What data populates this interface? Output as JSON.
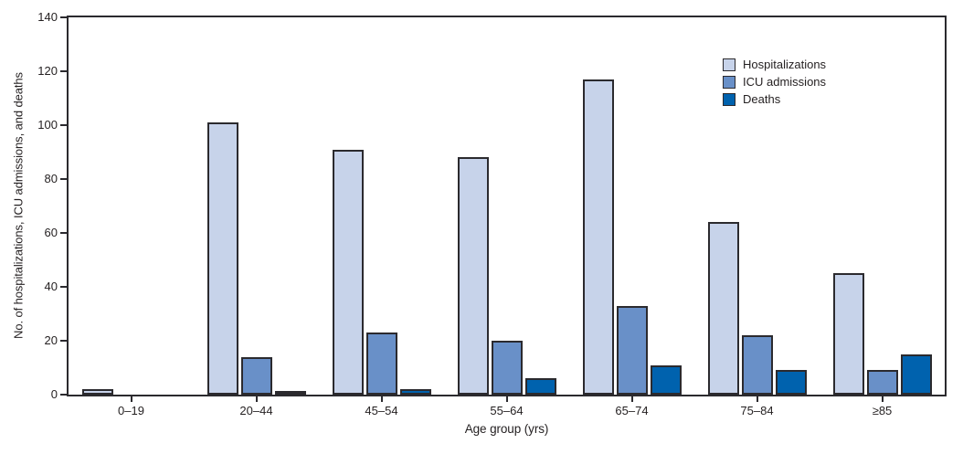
{
  "chart_data": {
    "type": "bar",
    "title": "",
    "categories": [
      "0–19",
      "20–44",
      "45–54",
      "55–64",
      "65–74",
      "75–84",
      "≥85"
    ],
    "series": [
      {
        "name": "Hospitalizations",
        "color": "#c7d3ea",
        "values": [
          2,
          101,
          91,
          88,
          117,
          64,
          45
        ]
      },
      {
        "name": "ICU admissions",
        "color": "#6990c8",
        "values": [
          0,
          14,
          23,
          20,
          33,
          22,
          9
        ]
      },
      {
        "name": "Deaths",
        "color": "#0062ae",
        "values": [
          0,
          1,
          2,
          6,
          11,
          9,
          15
        ]
      }
    ],
    "xlabel": "Age group (yrs)",
    "ylabel": "No. of hospitalizations, ICU admissions, and deaths",
    "ylim": [
      0,
      140
    ],
    "yticks": [
      0,
      20,
      40,
      60,
      80,
      100,
      120,
      140
    ],
    "grid": false,
    "legend_position": "top-right",
    "bar_outline_color": "#2b2a2e",
    "axis_color": "#2b2a2e",
    "text_color": "#231f20"
  }
}
